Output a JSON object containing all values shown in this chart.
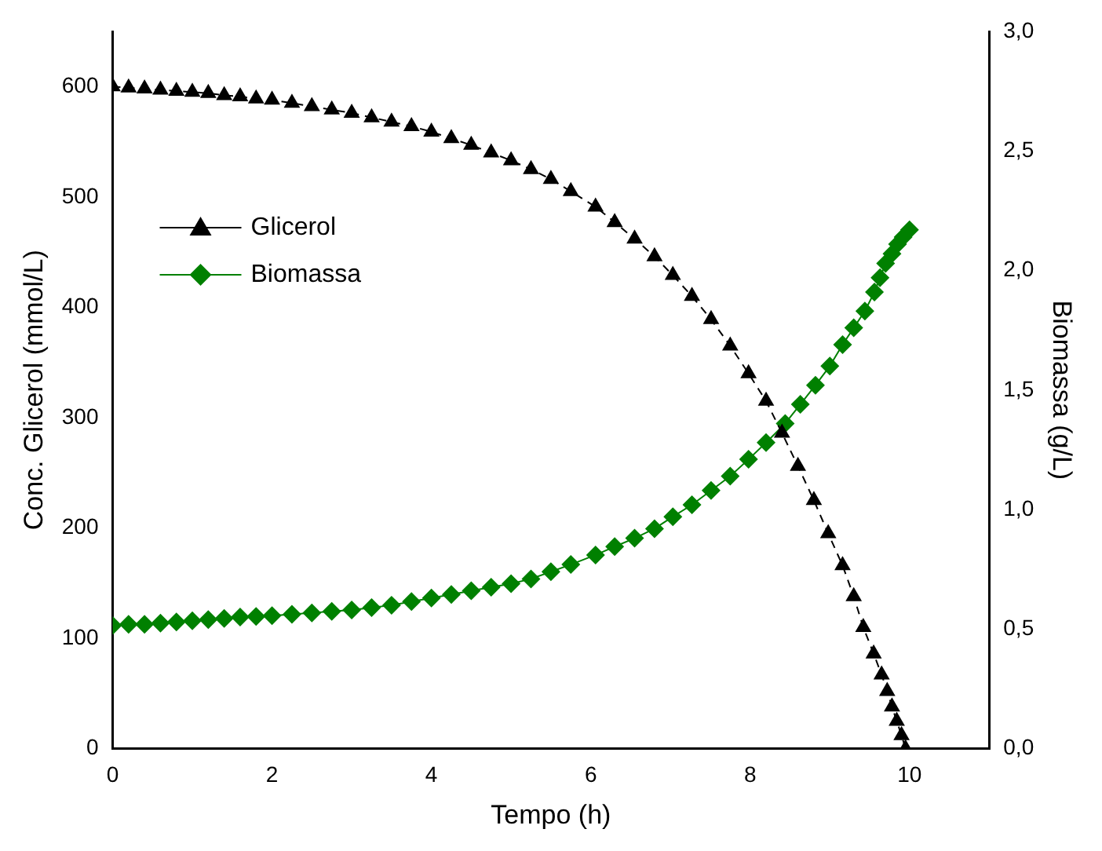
{
  "chart_data": {
    "type": "line",
    "xlabel": "Tempo (h)",
    "ylabel": "Conc. Glicerol (mmol/L)",
    "y2label": "Biomassa (g/L)",
    "xlim": [
      0,
      11
    ],
    "xticks": [
      0,
      2,
      4,
      6,
      8,
      10
    ],
    "ylim": [
      0,
      650
    ],
    "yticks": [
      0,
      100,
      200,
      300,
      400,
      500,
      600
    ],
    "y2lim": [
      0,
      3
    ],
    "y2ticks": [
      {
        "value": 0,
        "label": "0,0"
      },
      {
        "value": 0.5,
        "label": "0,5"
      },
      {
        "value": 1,
        "label": "1,0"
      },
      {
        "value": 1.5,
        "label": "1,5"
      },
      {
        "value": 2,
        "label": "2,0"
      },
      {
        "value": 2.5,
        "label": "2,5"
      },
      {
        "value": 3,
        "label": "3,0"
      }
    ],
    "grid": false,
    "legend": "top left",
    "series": [
      {
        "name": "Glicerol",
        "color": "#000000",
        "marker": "triangle",
        "line_style": "dashed",
        "x": [
          0,
          0.2,
          0.4,
          0.6,
          0.8,
          1,
          1.2,
          1.4,
          1.6,
          1.8,
          2,
          2.25,
          2.5,
          2.75,
          3,
          3.25,
          3.5,
          3.75,
          4,
          4.25,
          4.5,
          4.75,
          5,
          5.25,
          5.5,
          5.75,
          6.06,
          6.3,
          6.55,
          6.8,
          7.03,
          7.27,
          7.51,
          7.75,
          7.98,
          8.2,
          8.4,
          8.6,
          8.8,
          8.98,
          9.16,
          9.3,
          9.42,
          9.55,
          9.65,
          9.72,
          9.78,
          9.84,
          9.9,
          9.95
        ],
        "values": [
          600,
          599,
          598,
          597,
          596,
          595,
          594,
          592,
          591,
          589,
          588,
          585,
          582,
          579,
          576,
          572,
          568,
          564,
          559,
          553,
          547,
          540,
          533,
          525,
          516,
          505,
          491,
          477,
          462,
          446,
          429,
          410,
          389,
          365,
          340,
          315,
          286,
          256,
          225,
          195,
          166,
          138,
          110,
          86,
          67,
          52,
          38,
          25,
          12,
          0
        ]
      },
      {
        "name": "Biomassa",
        "color": "#008000",
        "marker": "diamond",
        "line_style": "solid",
        "axis": "y2",
        "x": [
          0,
          0.2,
          0.4,
          0.6,
          0.8,
          1,
          1.2,
          1.4,
          1.6,
          1.8,
          2,
          2.25,
          2.5,
          2.75,
          3,
          3.25,
          3.5,
          3.75,
          4,
          4.25,
          4.5,
          4.75,
          5,
          5.25,
          5.5,
          5.75,
          6.06,
          6.3,
          6.55,
          6.8,
          7.03,
          7.27,
          7.51,
          7.75,
          7.98,
          8.2,
          8.44,
          8.63,
          8.82,
          9,
          9.16,
          9.3,
          9.44,
          9.56,
          9.63,
          9.7,
          9.78,
          9.85,
          9.92,
          10
        ],
        "values": [
          0.515,
          0.52,
          0.52,
          0.525,
          0.53,
          0.535,
          0.54,
          0.545,
          0.55,
          0.553,
          0.556,
          0.562,
          0.568,
          0.574,
          0.58,
          0.59,
          0.6,
          0.615,
          0.63,
          0.645,
          0.66,
          0.675,
          0.69,
          0.71,
          0.74,
          0.77,
          0.81,
          0.845,
          0.88,
          0.92,
          0.97,
          1.02,
          1.08,
          1.14,
          1.21,
          1.28,
          1.36,
          1.44,
          1.52,
          1.6,
          1.69,
          1.76,
          1.83,
          1.91,
          1.97,
          2.03,
          2.07,
          2.11,
          2.14,
          2.17
        ]
      }
    ]
  }
}
